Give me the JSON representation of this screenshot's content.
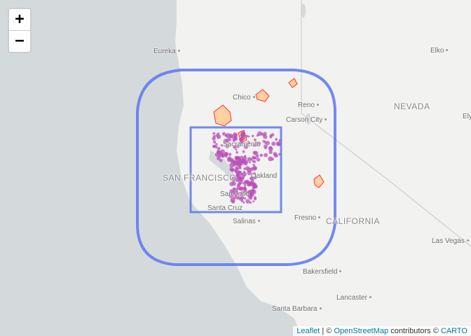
{
  "zoom": {
    "in_label": "+",
    "out_label": "−"
  },
  "attribution": {
    "leaflet": "Leaflet",
    "sep1": " | © ",
    "osm": "OpenStreetMap",
    "mid": " contributors © ",
    "carto": "CARTO"
  },
  "places": [
    {
      "name": "Eureka",
      "dot": true
    },
    {
      "name": "Elko",
      "dot": true
    },
    {
      "name": "Chico",
      "dot": true
    },
    {
      "name": "Reno",
      "dot": true
    },
    {
      "name": "Carson City",
      "dot": true
    },
    {
      "name": "NEVADA",
      "dot": false,
      "state": true
    },
    {
      "name": "Ely",
      "dot": false
    },
    {
      "name": "Sacramento",
      "dot": false
    },
    {
      "name": "SAN FRANCISCO",
      "dot": false,
      "state": true
    },
    {
      "name": "Oakland",
      "dot": false
    },
    {
      "name": "San Jose",
      "dot": false
    },
    {
      "name": "Santa Cruz",
      "dot": false
    },
    {
      "name": "Salinas",
      "dot": true
    },
    {
      "name": "Fresno",
      "dot": true
    },
    {
      "name": "CALIFORNIA",
      "dot": false,
      "state": true
    },
    {
      "name": "Las Vegas",
      "dot": true
    },
    {
      "name": "Bakersfield",
      "dot": true
    },
    {
      "name": "Lancaster",
      "dot": true
    },
    {
      "name": "Santa Barbara",
      "dot": true
    }
  ],
  "colors": {
    "ocean": "#d4dadc",
    "land": "#f2f2f0",
    "buffer": "#5a77f0",
    "points": "#b84fb8",
    "fire_fill": "#ffd0a0",
    "fire_stroke": "#ff3030"
  }
}
